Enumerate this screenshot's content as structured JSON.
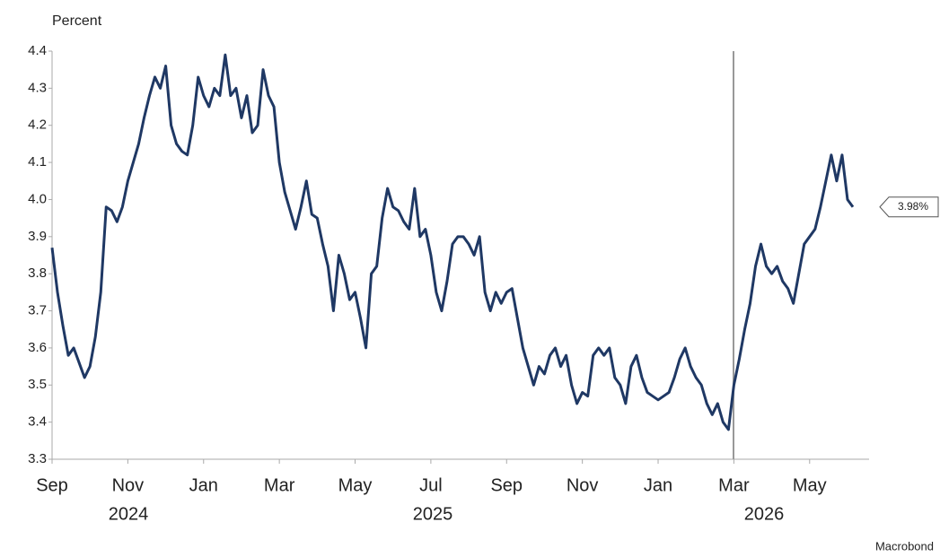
{
  "chart_data": {
    "type": "line",
    "y_label": "Percent",
    "source": "Macrobond",
    "categories": [
      "Sep",
      null,
      null,
      null,
      null,
      null,
      null,
      null,
      null,
      null,
      null,
      null,
      null,
      null,
      "Nov",
      null,
      null,
      null,
      null,
      null,
      null,
      null,
      null,
      null,
      null,
      null,
      null,
      null,
      "Jan",
      null,
      null,
      null,
      null,
      null,
      null,
      null,
      null,
      null,
      null,
      null,
      null,
      null,
      "Mar",
      null,
      null,
      null,
      null,
      null,
      null,
      null,
      null,
      null,
      null,
      null,
      null,
      null,
      "May",
      null,
      null,
      null,
      null,
      null,
      null,
      null,
      null,
      null,
      null,
      null,
      null,
      null,
      "Jul",
      null,
      null,
      null,
      null,
      null,
      null,
      null,
      null,
      null,
      null,
      null,
      null,
      null,
      "Sep",
      null,
      null,
      null,
      null,
      null,
      null,
      null,
      null,
      null,
      null,
      null,
      null,
      null,
      "Nov",
      null,
      null,
      null,
      null,
      null,
      null,
      null,
      null,
      null,
      null,
      null,
      null,
      null,
      "Jan",
      null,
      null,
      null,
      null,
      null,
      null,
      null,
      null,
      null,
      null,
      null,
      null,
      null,
      "Mar",
      null,
      null,
      null,
      null,
      null,
      null,
      null,
      null,
      null,
      null,
      null,
      null,
      null,
      "May",
      null,
      null,
      null,
      null,
      null,
      null,
      null,
      null
    ],
    "year_labels": [
      "2024",
      "2025",
      "2026"
    ],
    "series": [
      {
        "color": "#1f3864",
        "values": [
          3.87,
          3.75,
          3.66,
          3.58,
          3.6,
          3.56,
          3.52,
          3.55,
          3.63,
          3.75,
          3.98,
          3.97,
          3.94,
          3.98,
          4.05,
          4.1,
          4.15,
          4.22,
          4.28,
          4.33,
          4.3,
          4.36,
          4.2,
          4.15,
          4.13,
          4.12,
          4.2,
          4.33,
          4.28,
          4.25,
          4.3,
          4.28,
          4.39,
          4.28,
          4.3,
          4.22,
          4.28,
          4.18,
          4.2,
          4.35,
          4.28,
          4.25,
          4.1,
          4.02,
          3.97,
          3.92,
          3.98,
          4.05,
          3.96,
          3.95,
          3.88,
          3.82,
          3.7,
          3.85,
          3.8,
          3.73,
          3.75,
          3.68,
          3.6,
          3.8,
          3.82,
          3.95,
          4.03,
          3.98,
          3.97,
          3.94,
          3.92,
          4.03,
          3.9,
          3.92,
          3.85,
          3.75,
          3.7,
          3.78,
          3.88,
          3.9,
          3.9,
          3.88,
          3.85,
          3.9,
          3.75,
          3.7,
          3.75,
          3.72,
          3.75,
          3.76,
          3.68,
          3.6,
          3.55,
          3.5,
          3.55,
          3.53,
          3.58,
          3.6,
          3.55,
          3.58,
          3.5,
          3.45,
          3.48,
          3.47,
          3.58,
          3.6,
          3.58,
          3.6,
          3.52,
          3.5,
          3.45,
          3.55,
          3.58,
          3.52,
          3.48,
          3.47,
          3.46,
          3.47,
          3.48,
          3.52,
          3.57,
          3.6,
          3.55,
          3.52,
          3.5,
          3.45,
          3.42,
          3.45,
          3.4,
          3.38,
          3.5,
          3.57,
          3.65,
          3.72,
          3.82,
          3.88,
          3.82,
          3.8,
          3.82,
          3.78,
          3.76,
          3.72,
          3.8,
          3.88,
          3.9,
          3.92,
          3.98,
          4.05,
          4.12,
          4.05,
          4.12,
          4.0,
          3.98
        ],
        "value_labels": [
          null,
          null,
          null,
          null,
          null,
          null,
          null,
          null,
          null,
          null,
          null,
          null,
          null,
          null,
          null,
          null,
          null,
          null,
          null,
          null,
          null,
          null,
          null,
          null,
          null,
          null,
          null,
          null,
          null,
          null,
          null,
          null,
          null,
          null,
          null,
          null,
          null,
          null,
          null,
          null,
          null,
          null,
          null,
          null,
          null,
          null,
          null,
          null,
          null,
          null,
          null,
          null,
          null,
          null,
          null,
          null,
          null,
          null,
          null,
          null,
          null,
          null,
          null,
          null,
          null,
          null,
          null,
          null,
          null,
          null,
          null,
          null,
          null,
          null,
          null,
          null,
          null,
          null,
          null,
          null,
          null,
          null,
          null,
          null,
          null,
          null,
          null,
          null,
          null,
          null,
          null,
          null,
          null,
          null,
          null,
          null,
          null,
          null,
          null,
          null,
          null,
          null,
          null,
          null,
          null,
          null,
          null,
          null,
          null,
          null,
          null,
          null,
          null,
          null,
          null,
          null,
          null,
          null,
          null,
          null,
          null,
          null,
          null,
          null,
          null,
          null,
          null,
          null,
          null,
          null,
          null,
          null,
          null,
          null,
          null,
          null,
          null,
          null,
          null,
          null,
          null,
          null,
          null,
          null,
          null,
          null,
          null,
          null,
          "3.98%"
        ]
      }
    ],
    "ylim": [
      3.3,
      4.4
    ],
    "yticks": [
      3.3,
      3.4,
      3.5,
      3.6,
      3.7,
      3.8,
      3.9,
      {
        "value": 4,
        "label": "4.0"
      },
      4.1,
      4.2,
      4.3,
      4.4
    ],
    "grid": false
  }
}
